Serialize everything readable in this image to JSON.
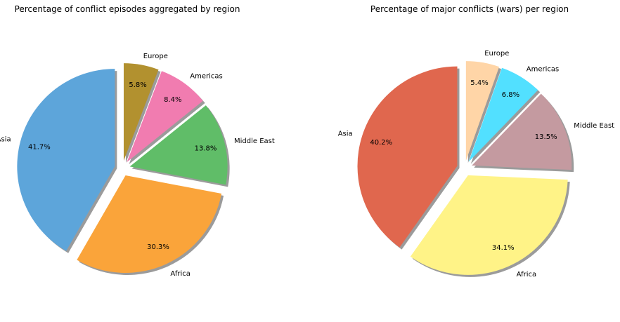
{
  "chart_data": [
    {
      "type": "pie",
      "title": "Percentage of conflict episodes aggregated by region",
      "categories": [
        "Asia",
        "Africa",
        "Middle East",
        "Americas",
        "Europe"
      ],
      "values": [
        41.7,
        30.3,
        13.8,
        8.4,
        5.8
      ],
      "value_labels": [
        "41.7%",
        "30.3%",
        "13.8%",
        "8.4%",
        "5.8%"
      ],
      "colors": [
        "#5DA5DA",
        "#FAA43A",
        "#60BD68",
        "#F17CB0",
        "#B2912F"
      ],
      "exploded": true,
      "shadow": true,
      "legend": "none"
    },
    {
      "type": "pie",
      "title": "Percentage of major conflicts (wars) per region",
      "categories": [
        "Asia",
        "Africa",
        "Middle East",
        "Americas",
        "Europe"
      ],
      "values": [
        40.2,
        34.1,
        13.5,
        6.8,
        5.4
      ],
      "value_labels": [
        "40.2%",
        "34.1%",
        "13.5%",
        "6.8%",
        "5.4%"
      ],
      "colors": [
        "#E0674E",
        "#FFF387",
        "#C49AA0",
        "#52E0FF",
        "#FFD5A7"
      ],
      "exploded": true,
      "shadow": true,
      "legend": "none"
    }
  ]
}
